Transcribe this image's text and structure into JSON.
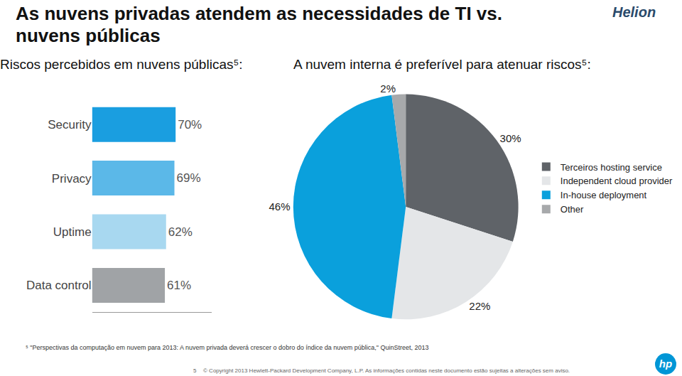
{
  "title": "As nuvens privadas atendem as necessidades de TI vs. nuvens públicas",
  "brand": "Helion",
  "logo": "hp",
  "footnote": "⁵ \"Perspectivas da computação em nuvem para 2013: A nuvem privada deverá crescer o dobro do índice da nuvem pública,\" QuinStreet, 2013",
  "page_number": "5",
  "copyright": "© Copyright 2013 Hewlett-Packard Development Company, L.P.  As informações contidas neste documento estão sujeitas a alterações sem aviso.",
  "chart_data": [
    {
      "type": "bar",
      "title": "Riscos percebidos em nuvens públicas⁵:",
      "orientation": "horizontal",
      "categories": [
        "Security",
        "Privacy",
        "Uptime",
        "Data control"
      ],
      "values": [
        70,
        69,
        62,
        61
      ],
      "value_labels": [
        "70%",
        "69%",
        "62%",
        "61%"
      ],
      "colors": [
        "#1a9ee0",
        "#5bb8e8",
        "#a8d8f0",
        "#a0a3a6"
      ],
      "xlim": [
        0,
        100
      ],
      "data_labels": true,
      "tick_labels": "y"
    },
    {
      "type": "pie",
      "title": "A nuvem interna é preferível para atenuar riscos⁵:",
      "categories": [
        "Terceiros hosting service",
        "Independent cloud provider",
        "In-house deployment",
        "Other"
      ],
      "values": [
        30,
        22,
        46,
        2
      ],
      "value_labels": [
        "30%",
        "22%",
        "46%",
        "2%"
      ],
      "colors": [
        "#5f6368",
        "#e4e6e8",
        "#0aa0dc",
        "#a7a9ab"
      ],
      "data_labels": true,
      "legend": "right"
    }
  ]
}
